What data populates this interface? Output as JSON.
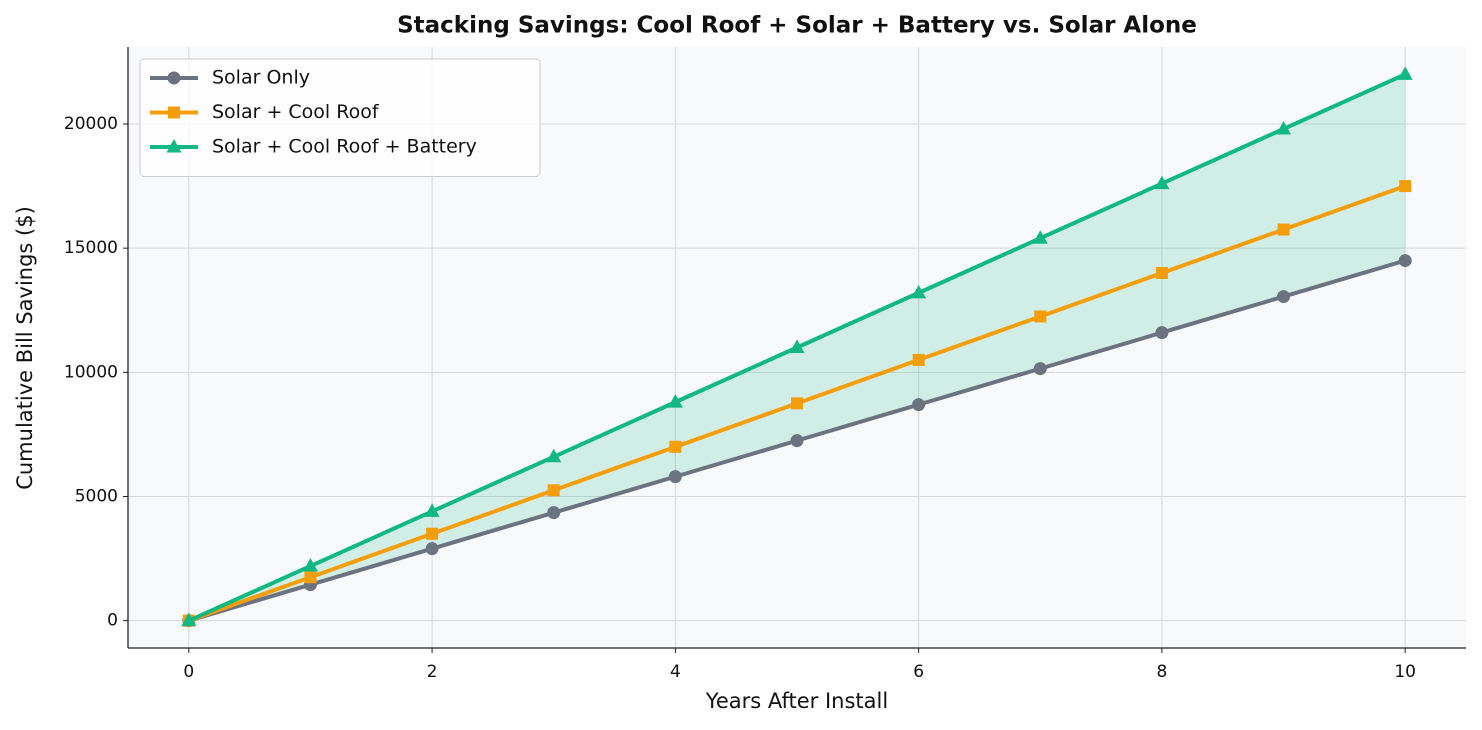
{
  "chart_data": {
    "type": "line",
    "title": "Stacking Savings: Cool Roof + Solar + Battery vs. Solar Alone",
    "xlabel": "Years After Install",
    "ylabel": "Cumulative Bill Savings ($)",
    "x": [
      0,
      1,
      2,
      3,
      4,
      5,
      6,
      7,
      8,
      9,
      10
    ],
    "series": [
      {
        "name": "Solar Only",
        "color": "#6b7280",
        "marker": "circle",
        "values": [
          0,
          1450,
          2900,
          4350,
          5800,
          7250,
          8700,
          10150,
          11600,
          13050,
          14500
        ]
      },
      {
        "name": "Solar + Cool Roof",
        "color": "#f59e0b",
        "marker": "square",
        "values": [
          0,
          1750,
          3500,
          5250,
          7000,
          8750,
          10500,
          12250,
          14000,
          15750,
          17500
        ]
      },
      {
        "name": "Solar + Cool Roof + Battery",
        "color": "#10b981",
        "marker": "triangle",
        "values": [
          0,
          2200,
          4400,
          6600,
          8800,
          11000,
          13200,
          15400,
          17600,
          19800,
          22000
        ]
      }
    ],
    "fill_between": {
      "from": "Solar Only",
      "to": "Solar + Cool Roof + Battery",
      "color": "#10b981"
    },
    "xlim": [
      -0.5,
      10.5
    ],
    "xticks": [
      0,
      2,
      4,
      6,
      8,
      10
    ],
    "ylim": [
      -1100,
      23100
    ],
    "yticks": [
      0,
      5000,
      10000,
      15000,
      20000
    ],
    "grid": true,
    "legend": "upper-left"
  }
}
